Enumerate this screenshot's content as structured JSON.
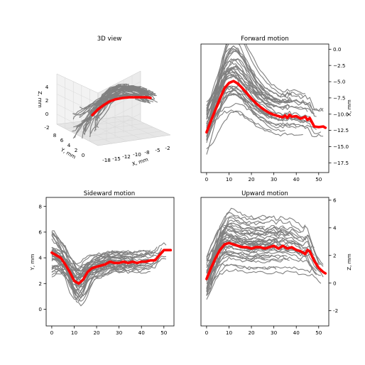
{
  "chart_data": [
    {
      "type": "line",
      "projection": "3d",
      "title": "3D view",
      "xlabel": "X, mm",
      "ylabel": "Y, mm",
      "zlabel": "Z, mm",
      "x_ticks": [
        "-18",
        "-15",
        "-12",
        "-10",
        "-8",
        "-5",
        "-2"
      ],
      "y_ticks": [
        "0",
        "2",
        "4",
        "6",
        "8"
      ],
      "z_ticks": [
        "-2",
        "0",
        "2",
        "4"
      ],
      "series": [
        {
          "role": "trials",
          "color": "#808080",
          "count": 40
        },
        {
          "role": "mean",
          "color": "#ff0000"
        }
      ]
    },
    {
      "type": "line",
      "title": "Forward motion",
      "xlabel": "",
      "ylabel": "X, mm",
      "xlim": [
        -2.5,
        54.5
      ],
      "ylim": [
        -19.0,
        0.8
      ],
      "x_ticks": [
        0,
        10,
        20,
        30,
        40,
        50
      ],
      "y_ticks": [
        0.0,
        -2.5,
        -5.0,
        -7.5,
        -10.0,
        -12.5,
        -15.0,
        -17.5
      ],
      "y_tick_labels": [
        "0.0",
        "−2.5",
        "−5.0",
        "−7.5",
        "−10.0",
        "−12.5",
        "−15.0",
        "−17.5"
      ],
      "yaxis_side": "right",
      "mean": {
        "x": [
          0,
          2,
          4,
          6,
          8,
          10,
          12,
          14,
          16,
          18,
          20,
          22,
          24,
          26,
          28,
          30,
          32,
          34,
          35,
          36,
          37,
          38,
          40,
          42,
          44,
          45,
          46,
          48,
          50,
          52,
          53
        ],
        "y": [
          -12.8,
          -11.0,
          -9.3,
          -7.6,
          -6.0,
          -5.2,
          -4.9,
          -5.3,
          -6.0,
          -6.8,
          -7.6,
          -8.3,
          -8.9,
          -9.4,
          -9.8,
          -10.1,
          -10.3,
          -10.5,
          -10.2,
          -10.6,
          -10.1,
          -10.4,
          -10.3,
          -10.7,
          -10.4,
          -10.9,
          -10.6,
          -11.9,
          -12.0,
          -11.9,
          -12.1
        ]
      }
    },
    {
      "type": "line",
      "title": "Sideward motion",
      "xlabel": "",
      "ylabel": "Y, mm",
      "xlim": [
        -2.5,
        54.5
      ],
      "ylim": [
        -1.3,
        8.7
      ],
      "x_ticks": [
        0,
        10,
        20,
        30,
        40,
        50
      ],
      "y_ticks": [
        0,
        2,
        4,
        6,
        8
      ],
      "yaxis_side": "left",
      "mean": {
        "x": [
          0,
          2,
          4,
          6,
          8,
          10,
          12,
          14,
          16,
          18,
          20,
          22,
          24,
          26,
          28,
          30,
          32,
          34,
          36,
          38,
          40,
          42,
          44,
          46,
          48,
          50,
          52,
          53
        ],
        "y": [
          4.4,
          4.2,
          4.0,
          3.5,
          2.9,
          2.2,
          2.0,
          2.3,
          2.9,
          3.2,
          3.3,
          3.4,
          3.5,
          3.7,
          3.6,
          3.6,
          3.7,
          3.6,
          3.7,
          3.6,
          3.7,
          3.7,
          3.8,
          3.8,
          4.2,
          4.6,
          4.6,
          4.6
        ]
      }
    },
    {
      "type": "line",
      "title": "Upward motion",
      "xlabel": "",
      "ylabel": "Z, mm",
      "xlim": [
        -2.5,
        54.5
      ],
      "ylim": [
        -3.1,
        6.2
      ],
      "x_ticks": [
        0,
        10,
        20,
        30,
        40,
        50
      ],
      "y_ticks": [
        -2,
        0,
        2,
        4,
        6
      ],
      "yaxis_side": "right",
      "mean": {
        "x": [
          0,
          2,
          4,
          6,
          8,
          10,
          12,
          14,
          16,
          18,
          20,
          22,
          24,
          26,
          28,
          30,
          32,
          34,
          36,
          38,
          40,
          42,
          44,
          45,
          46,
          48,
          50,
          52,
          53
        ],
        "y": [
          0.3,
          1.1,
          1.8,
          2.4,
          2.8,
          2.9,
          2.8,
          2.7,
          2.6,
          2.6,
          2.5,
          2.6,
          2.6,
          2.5,
          2.6,
          2.7,
          2.5,
          2.7,
          2.5,
          2.6,
          2.4,
          2.3,
          2.1,
          2.4,
          2.3,
          1.6,
          1.1,
          0.8,
          0.7
        ]
      }
    }
  ]
}
